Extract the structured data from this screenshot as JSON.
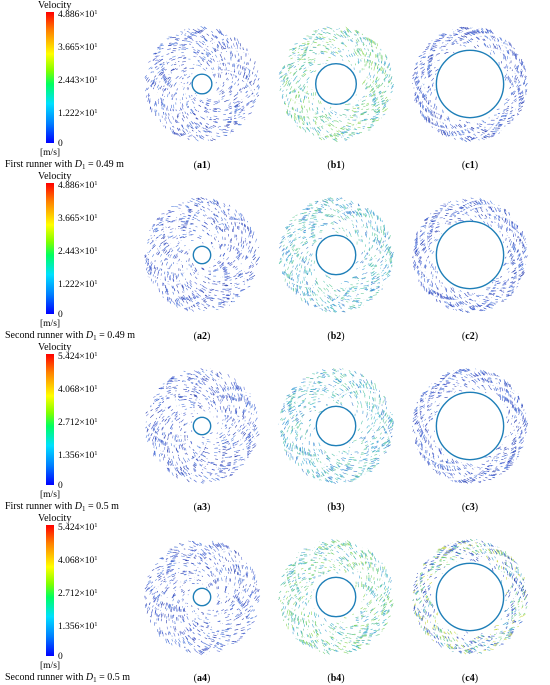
{
  "rows": [
    {
      "title": "Velocity",
      "ticks": [
        "4.886×10",
        "3.665×10",
        "2.443×10",
        "1.222×10",
        "0"
      ],
      "exponents": [
        "1",
        "1",
        "1",
        "1",
        ""
      ],
      "unit": "[m/s]",
      "caption_prefix": "First runner with ",
      "caption_var": "D",
      "caption_sub": "1",
      "caption_suffix": " = 0.49 m",
      "panels": [
        {
          "letter": "a",
          "num": "1",
          "hole": 0.17,
          "tone": "blue"
        },
        {
          "letter": "b",
          "num": "1",
          "hole": 0.35,
          "tone": "green"
        },
        {
          "letter": "c",
          "num": "1",
          "hole": 0.58,
          "tone": "blue"
        }
      ]
    },
    {
      "title": "Velocity",
      "ticks": [
        "4.886×10",
        "3.665×10",
        "2.443×10",
        "1.222×10",
        "0"
      ],
      "exponents": [
        "1",
        "1",
        "1",
        "1",
        ""
      ],
      "unit": "[m/s]",
      "caption_prefix": "Second runner with ",
      "caption_var": "D",
      "caption_sub": "1",
      "caption_suffix": " = 0.49 m",
      "panels": [
        {
          "letter": "a",
          "num": "2",
          "hole": 0.15,
          "tone": "blue"
        },
        {
          "letter": "b",
          "num": "2",
          "hole": 0.34,
          "tone": "cyan"
        },
        {
          "letter": "c",
          "num": "2",
          "hole": 0.58,
          "tone": "blue"
        }
      ]
    },
    {
      "title": "Velocity",
      "ticks": [
        "5.424×10",
        "4.068×10",
        "2.712×10",
        "1.356×10",
        "0"
      ],
      "exponents": [
        "1",
        "1",
        "1",
        "1",
        ""
      ],
      "unit": "[m/s]",
      "caption_prefix": "First runner with ",
      "caption_var": "D",
      "caption_sub": "1",
      "caption_suffix": " = 0.5 m",
      "panels": [
        {
          "letter": "a",
          "num": "3",
          "hole": 0.15,
          "tone": "blue"
        },
        {
          "letter": "b",
          "num": "3",
          "hole": 0.34,
          "tone": "cyan"
        },
        {
          "letter": "c",
          "num": "3",
          "hole": 0.58,
          "tone": "blue"
        }
      ]
    },
    {
      "title": "Velocity",
      "ticks": [
        "5.424×10",
        "4.068×10",
        "2.712×10",
        "1.356×10",
        "0"
      ],
      "exponents": [
        "1",
        "1",
        "1",
        "1",
        ""
      ],
      "unit": "[m/s]",
      "caption_prefix": "Second runner with ",
      "caption_var": "D",
      "caption_sub": "1",
      "caption_suffix": " = 0.5 m",
      "panels": [
        {
          "letter": "a",
          "num": "4",
          "hole": 0.15,
          "tone": "blue"
        },
        {
          "letter": "b",
          "num": "4",
          "hole": 0.34,
          "tone": "green"
        },
        {
          "letter": "c",
          "num": "4",
          "hole": 0.58,
          "tone": "mixed"
        }
      ]
    }
  ],
  "tone_colors": {
    "blue": [
      "#3b52c8",
      "#4f73d6",
      "#2f42b0",
      "#5b86e0",
      "#6a7bd8"
    ],
    "green": [
      "#5ec2a0",
      "#79d27a",
      "#3fb3c8",
      "#8fd85a",
      "#52a8d8"
    ],
    "cyan": [
      "#4fb6d6",
      "#5fc8b0",
      "#3c9ad8",
      "#72cfa0",
      "#4a86d0"
    ],
    "mixed": [
      "#3f5fd0",
      "#6fcf80",
      "#c8d84a",
      "#4aa8d0",
      "#2f48b8"
    ]
  },
  "blade_color": "#ffffff",
  "rim_color": "#1f7fb8"
}
